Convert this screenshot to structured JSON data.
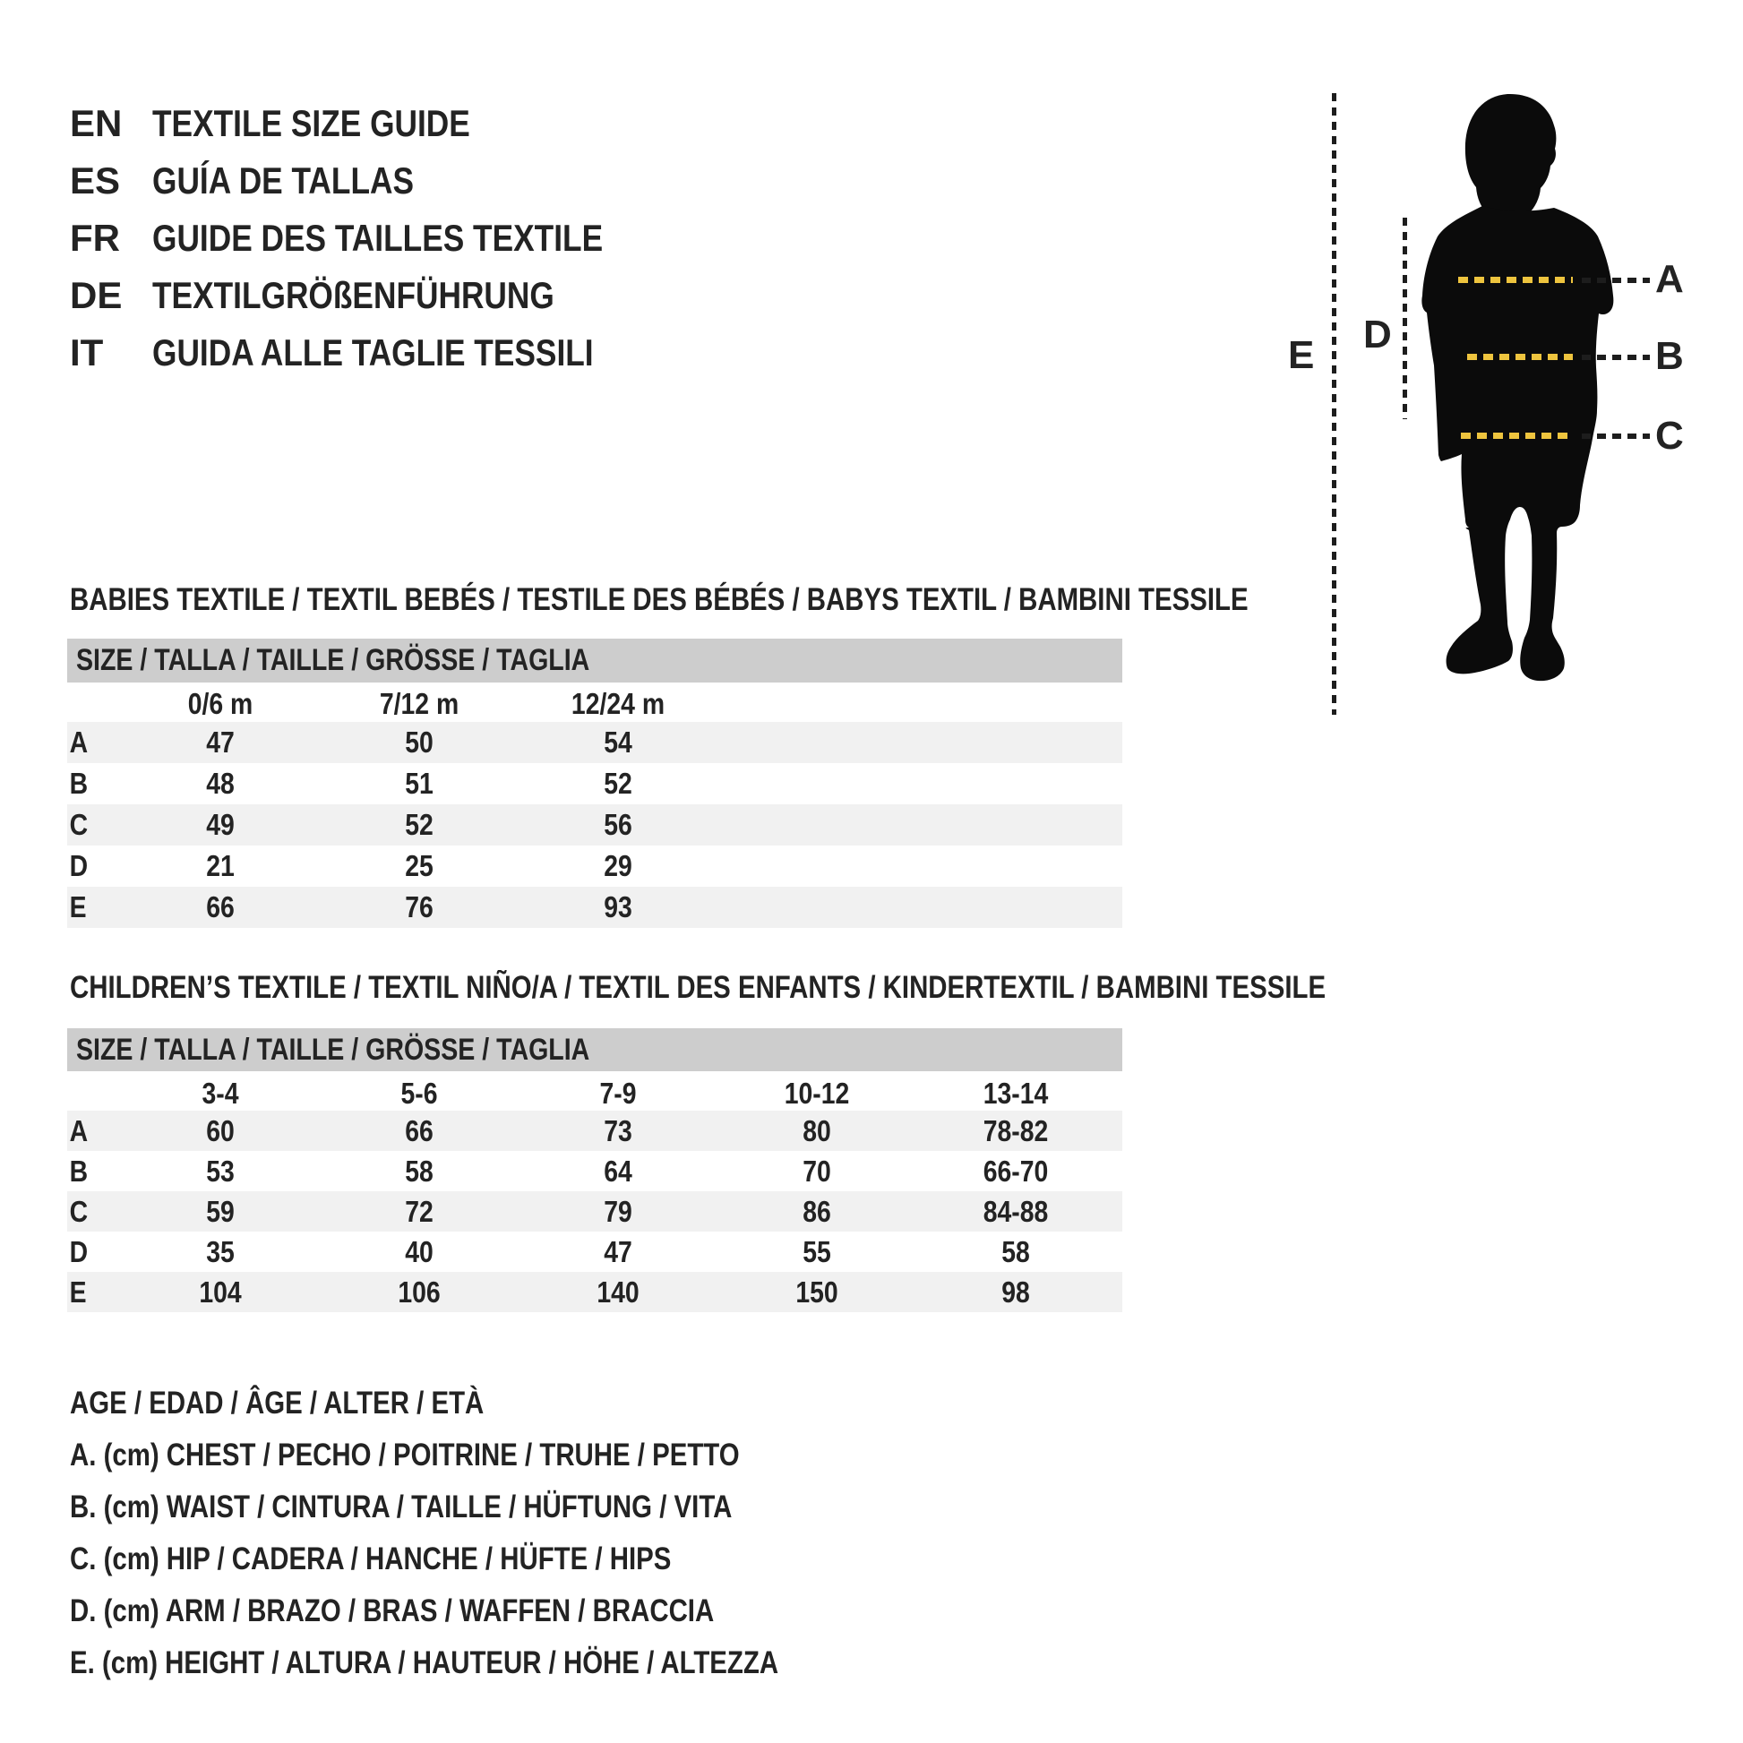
{
  "colors": {
    "text": "#232323",
    "bar": "#cdcdcd",
    "stripe": "#f1f1f1",
    "silhouette": "#0b0b0b",
    "dashdark": "#1d1d1d",
    "dashyellow": "#eec43e"
  },
  "header": {
    "languages": [
      {
        "code": "EN",
        "title": "TEXTILE SIZE GUIDE"
      },
      {
        "code": "ES",
        "title": "GUÍA DE TALLAS"
      },
      {
        "code": "FR",
        "title": "GUIDE DES TAILLES TEXTILE"
      },
      {
        "code": "DE",
        "title": "TEXTILGRÖßENFÜHRUNG"
      },
      {
        "code": "IT",
        "title": "GUIDA ALLE TAGLIE TESSILI"
      }
    ]
  },
  "figure": {
    "labels": [
      "A",
      "B",
      "C",
      "D",
      "E"
    ]
  },
  "tables": [
    {
      "id": "babies",
      "title": "BABIES TEXTILE / TEXTIL BEBÉS / TESTILE DES BÉBÉS / BABYS TEXTIL / BAMBINI TESSILE",
      "size_header": "SIZE / TALLA / TAILLE / GRÖSSE / TAGLIA",
      "columns": [
        "0/6 m",
        "7/12 m",
        "12/24 m"
      ],
      "rows": [
        {
          "label": "A",
          "values": [
            "47",
            "50",
            "54"
          ]
        },
        {
          "label": "B",
          "values": [
            "48",
            "51",
            "52"
          ]
        },
        {
          "label": "C",
          "values": [
            "49",
            "52",
            "56"
          ]
        },
        {
          "label": "D",
          "values": [
            "21",
            "25",
            "29"
          ]
        },
        {
          "label": "E",
          "values": [
            "66",
            "76",
            "93"
          ]
        }
      ]
    },
    {
      "id": "children",
      "title": "CHILDREN’S TEXTILE / TEXTIL NIÑO/A / TEXTIL DES ENFANTS / KINDERTEXTIL / BAMBINI TESSILE",
      "size_header": "SIZE / TALLA / TAILLE / GRÖSSE / TAGLIA",
      "columns": [
        "3-4",
        "5-6",
        "7-9",
        "10-12",
        "13-14"
      ],
      "rows": [
        {
          "label": "A",
          "values": [
            "60",
            "66",
            "73",
            "80",
            "78-82"
          ]
        },
        {
          "label": "B",
          "values": [
            "53",
            "58",
            "64",
            "70",
            "66-70"
          ]
        },
        {
          "label": "C",
          "values": [
            "59",
            "72",
            "79",
            "86",
            "84-88"
          ]
        },
        {
          "label": "D",
          "values": [
            "35",
            "40",
            "47",
            "55",
            "58"
          ]
        },
        {
          "label": "E",
          "values": [
            "104",
            "106",
            "140",
            "150",
            "98"
          ]
        }
      ]
    }
  ],
  "legend": {
    "lines": [
      "AGE / EDAD / ÂGE / ALTER / ETÀ",
      "A. (cm) CHEST / PECHO / POITRINE / TRUHE / PETTO",
      "B. (cm) WAIST / CINTURA / TAILLE / HÜFTUNG / VITA",
      "C. (cm) HIP / CADERA / HANCHE / HÜFTE / HIPS",
      "D. (cm) ARM / BRAZO / BRAS / WAFFEN / BRACCIA",
      "E. (cm) HEIGHT / ALTURA / HAUTEUR / HÖHE / ALTEZZA"
    ]
  }
}
